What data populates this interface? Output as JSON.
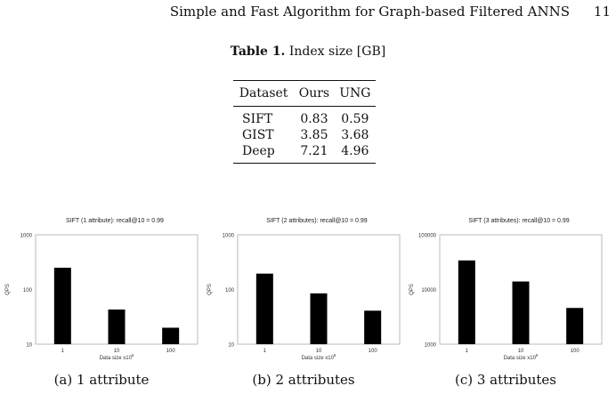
{
  "header": {
    "running_title": "Simple and Fast Algorithm for Graph-based Filtered ANNS",
    "page_number": "11"
  },
  "table": {
    "caption_label": "Table 1.",
    "caption_text": " Index size [GB]",
    "columns": [
      "Dataset",
      "Ours",
      "UNG"
    ],
    "rows": [
      [
        "SIFT",
        "0.83",
        "0.59"
      ],
      [
        "GIST",
        "3.85",
        "3.68"
      ],
      [
        "Deep",
        "7.21",
        "4.96"
      ]
    ]
  },
  "chart_data": [
    {
      "type": "bar",
      "title": "SIFT (1 attribute): recall@10 = 0.99",
      "xlabel": "Data size x10",
      "xlabel_sup": "6",
      "ylabel": "QPS",
      "yscale": "log",
      "ylim": [
        10,
        1000
      ],
      "yticks": [
        "10",
        "100",
        "1000"
      ],
      "categories": [
        "1",
        "10",
        "100"
      ],
      "values": [
        250,
        43,
        20
      ],
      "caption": "(a) 1 attribute"
    },
    {
      "type": "bar",
      "title": "SIFT (2 attributes): recall@10 = 0.99",
      "xlabel": "Data size x10",
      "xlabel_sup": "6",
      "ylabel": "QPS",
      "yscale": "log",
      "ylim": [
        10,
        1000
      ],
      "yticks": [
        "10",
        "100",
        "1000"
      ],
      "categories": [
        "1",
        "10",
        "100"
      ],
      "values": [
        195,
        85,
        41
      ],
      "caption": "(b) 2 attributes"
    },
    {
      "type": "bar",
      "title": "SIFT (3 attributes): recall@10 = 0.99",
      "xlabel": "Data size x10",
      "xlabel_sup": "6",
      "ylabel": "QPS",
      "yscale": "log",
      "ylim": [
        1000,
        100000
      ],
      "yticks": [
        "1000",
        "10000",
        "100000"
      ],
      "categories": [
        "1",
        "10",
        "100"
      ],
      "values": [
        34000,
        14000,
        4600
      ],
      "caption": "(c) 3 attributes"
    }
  ]
}
